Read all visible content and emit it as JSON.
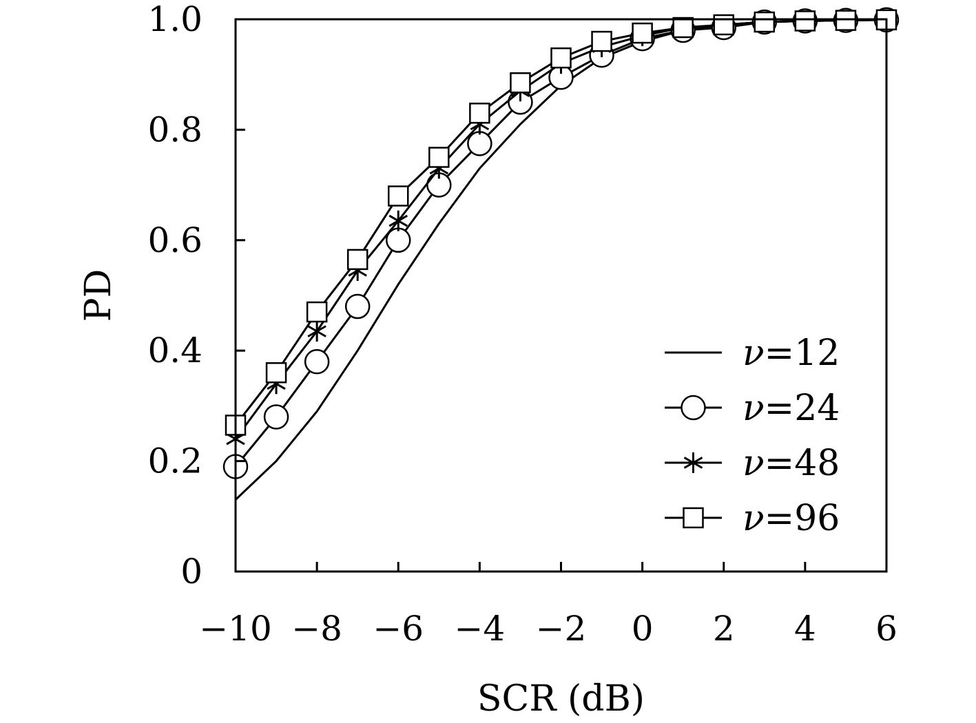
{
  "chart_data": {
    "type": "line",
    "title": "",
    "xlabel": "SCR (dB)",
    "ylabel": "PD",
    "xlim": [
      -10,
      6
    ],
    "ylim": [
      0,
      1.0
    ],
    "xticks": [
      -10,
      -8,
      -6,
      -4,
      -2,
      0,
      2,
      4,
      6
    ],
    "xtick_labels": [
      "−10",
      "−8",
      "−6",
      "−4",
      "−2",
      "0",
      "2",
      "4",
      "6"
    ],
    "yticks": [
      0,
      0.2,
      0.4,
      0.6,
      0.8,
      1.0
    ],
    "ytick_labels": [
      "0",
      "0.2",
      "0.4",
      "0.6",
      "0.8",
      "1.0"
    ],
    "grid": false,
    "legend_position": "lower-right",
    "x": [
      -10,
      -9,
      -8,
      -7,
      -6,
      -5,
      -4,
      -3,
      -2,
      -1,
      0,
      1,
      2,
      3,
      4,
      5,
      6
    ],
    "series": [
      {
        "name": "ν=12",
        "marker": "none",
        "values": [
          0.13,
          0.2,
          0.29,
          0.4,
          0.52,
          0.63,
          0.73,
          0.81,
          0.88,
          0.93,
          0.96,
          0.98,
          0.99,
          0.995,
          0.997,
          0.998,
          0.999
        ]
      },
      {
        "name": "ν=24",
        "marker": "circle",
        "values": [
          0.19,
          0.28,
          0.38,
          0.48,
          0.6,
          0.7,
          0.775,
          0.85,
          0.895,
          0.935,
          0.965,
          0.98,
          0.985,
          0.995,
          0.997,
          0.998,
          0.999
        ]
      },
      {
        "name": "ν=48",
        "marker": "asterisk",
        "values": [
          0.24,
          0.34,
          0.435,
          0.545,
          0.635,
          0.73,
          0.81,
          0.87,
          0.92,
          0.95,
          0.97,
          0.985,
          0.99,
          0.995,
          0.997,
          0.998,
          0.999
        ]
      },
      {
        "name": "ν=96",
        "marker": "square",
        "values": [
          0.265,
          0.36,
          0.47,
          0.565,
          0.68,
          0.75,
          0.83,
          0.885,
          0.93,
          0.96,
          0.975,
          0.985,
          0.99,
          0.995,
          0.997,
          0.998,
          0.999
        ]
      }
    ],
    "legend": {
      "entries": [
        {
          "symbol": "ν",
          "eq": "=12"
        },
        {
          "symbol": "ν",
          "eq": "=24"
        },
        {
          "symbol": "ν",
          "eq": "=48"
        },
        {
          "symbol": "ν",
          "eq": "=96"
        }
      ]
    },
    "colors": {
      "line": "#000000",
      "background": "#ffffff"
    }
  }
}
